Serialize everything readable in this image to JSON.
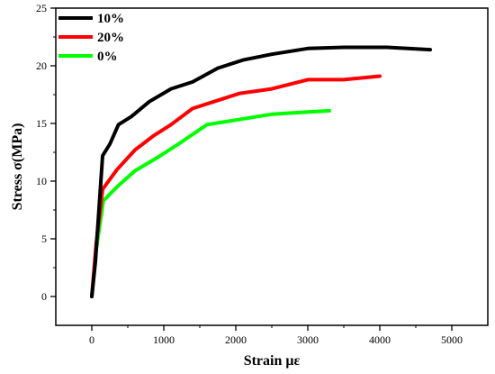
{
  "chart_data": {
    "type": "line",
    "xlabel": "Strain με",
    "ylabel": "Stress σ(MPa)",
    "xlim": [
      -500,
      5500
    ],
    "ylim": [
      -2.5,
      25
    ],
    "x_ticks": [
      0,
      1000,
      2000,
      3000,
      4000,
      5000
    ],
    "y_ticks": [
      0,
      5,
      10,
      15,
      20,
      25
    ],
    "grid": false,
    "legend_position": "top-left",
    "series": [
      {
        "name": "10%",
        "color": "#000000",
        "points": [
          [
            0,
            0
          ],
          [
            50,
            3
          ],
          [
            150,
            12.2
          ],
          [
            250,
            13.2
          ],
          [
            370,
            14.9
          ],
          [
            550,
            15.6
          ],
          [
            800,
            16.9
          ],
          [
            1100,
            18
          ],
          [
            1400,
            18.6
          ],
          [
            1750,
            19.8
          ],
          [
            2100,
            20.5
          ],
          [
            2500,
            21
          ],
          [
            3000,
            21.5
          ],
          [
            3500,
            21.6
          ],
          [
            4100,
            21.6
          ],
          [
            4700,
            21.4
          ]
        ]
      },
      {
        "name": "20%",
        "color": "#ff0000",
        "points": [
          [
            0,
            0
          ],
          [
            60,
            4.5
          ],
          [
            150,
            9.3
          ],
          [
            350,
            11
          ],
          [
            600,
            12.7
          ],
          [
            850,
            13.9
          ],
          [
            1100,
            14.9
          ],
          [
            1400,
            16.3
          ],
          [
            1700,
            16.9
          ],
          [
            2050,
            17.6
          ],
          [
            2500,
            18
          ],
          [
            3000,
            18.8
          ],
          [
            3500,
            18.8
          ],
          [
            4000,
            19.1
          ]
        ]
      },
      {
        "name": "0%",
        "color": "#00ff00",
        "points": [
          [
            0,
            0
          ],
          [
            60,
            4
          ],
          [
            160,
            8.3
          ],
          [
            350,
            9.5
          ],
          [
            600,
            10.9
          ],
          [
            900,
            12
          ],
          [
            1200,
            13.2
          ],
          [
            1600,
            14.9
          ],
          [
            2000,
            15.3
          ],
          [
            2500,
            15.8
          ],
          [
            3000,
            16
          ],
          [
            3300,
            16.1
          ]
        ]
      }
    ]
  }
}
